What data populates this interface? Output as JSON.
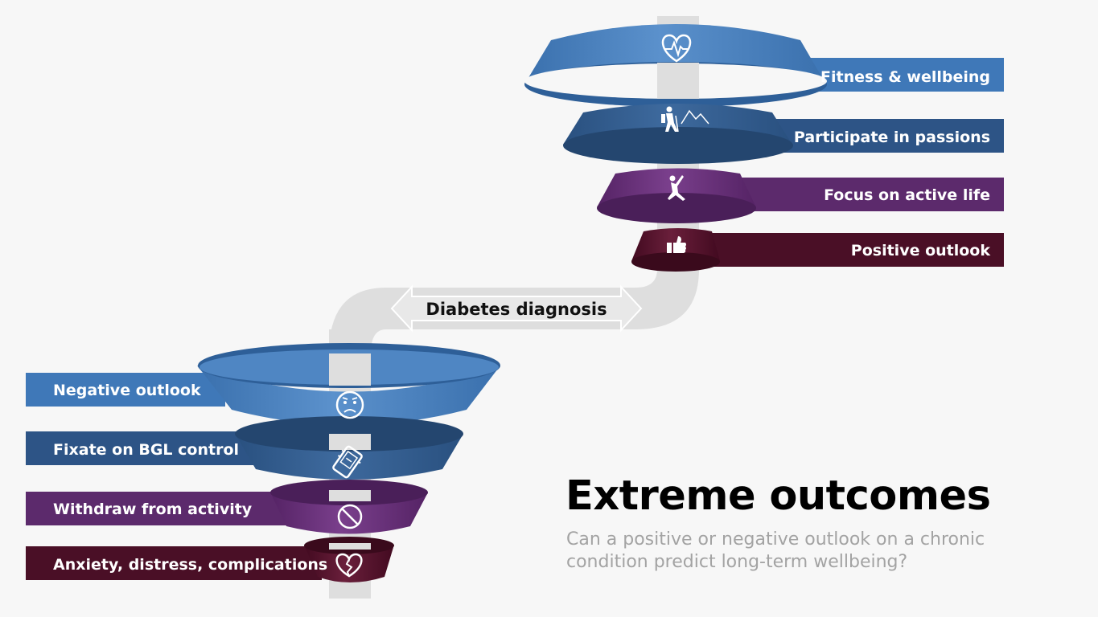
{
  "colors": {
    "blue_light": "#3f78b8",
    "blue_dark": "#2d5486",
    "purple": "#5c2a6c",
    "maroon": "#4a0f26",
    "pipe": "#dedede",
    "title": "#000000",
    "subtitle": "#a3a3a3"
  },
  "positive_funnel": {
    "levels": [
      {
        "label": "Fitness & wellbeing",
        "icon": "heart-pulse-icon"
      },
      {
        "label": "Participate in passions",
        "icon": "hiker-mountain-icon"
      },
      {
        "label": "Focus on active life",
        "icon": "yoga-pose-icon"
      },
      {
        "label": "Positive outlook",
        "icon": "thumbs-up-icon"
      }
    ]
  },
  "negative_funnel": {
    "levels": [
      {
        "label": "Negative outlook",
        "icon": "sad-face-icon"
      },
      {
        "label": "Fixate on BGL control",
        "icon": "glucose-monitor-icon"
      },
      {
        "label": "Withdraw from activity",
        "icon": "prohibited-icon"
      },
      {
        "label": "Anxiety, distress, complications",
        "icon": "broken-heart-icon"
      }
    ]
  },
  "center": {
    "label": "Diabetes diagnosis"
  },
  "heading": {
    "title": "Extreme outcomes",
    "subtitle": "Can a positive or negative outlook on a chronic condition predict long-term wellbeing?"
  }
}
